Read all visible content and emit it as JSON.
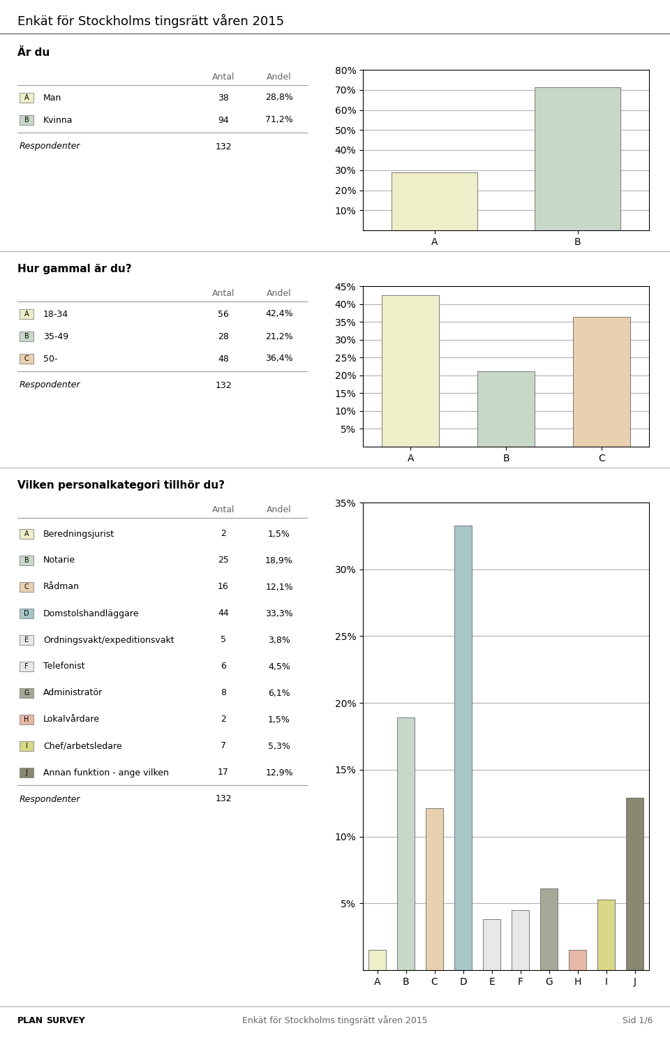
{
  "title": "Enkät för Stockholms tingsrätt våren 2015",
  "annotations": [
    "PLAN",
    "SURVEY",
    "Enkät för Stockholms tingsrätt våren 2015",
    "Sid 1/6"
  ],
  "chart_data": [
    {
      "type": "bar",
      "title": "Är du",
      "categories": [
        "A",
        "B"
      ],
      "values": [
        0.288,
        0.712
      ],
      "colors": [
        "#eeeec8",
        "#c8d8c8"
      ],
      "ylim": [
        0,
        0.8
      ],
      "yticks": [
        {
          "value": 0.1,
          "label": "10%"
        },
        {
          "value": 0.2,
          "label": "20%"
        },
        {
          "value": 0.3,
          "label": "30%"
        },
        {
          "value": 0.4,
          "label": "40%"
        },
        {
          "value": 0.5,
          "label": "50%"
        },
        {
          "value": 0.6,
          "label": "60%"
        },
        {
          "value": 0.7,
          "label": "70%"
        },
        {
          "value": 0.8,
          "label": "80%"
        }
      ],
      "grid": true,
      "category_labels": [
        "Man",
        "Kvinna"
      ],
      "count_header": "Antal",
      "share_header": "Andel",
      "counts": [
        38,
        94
      ],
      "value_labels": [
        "28,8%",
        "71,2%"
      ],
      "total_label": "Respondenter",
      "total": 132
    },
    {
      "type": "bar",
      "title": "Hur gammal är du?",
      "categories": [
        "A",
        "B",
        "C"
      ],
      "values": [
        0.424,
        0.212,
        0.364
      ],
      "colors": [
        "#eeeec8",
        "#c8d8c8",
        "#e8d0b0"
      ],
      "ylim": [
        0,
        0.45
      ],
      "yticks": [
        {
          "value": 0.05,
          "label": "5%"
        },
        {
          "value": 0.1,
          "label": "10%"
        },
        {
          "value": 0.15,
          "label": "15%"
        },
        {
          "value": 0.2,
          "label": "20%"
        },
        {
          "value": 0.25,
          "label": "25%"
        },
        {
          "value": 0.3,
          "label": "30%"
        },
        {
          "value": 0.35,
          "label": "35%"
        },
        {
          "value": 0.4,
          "label": "40%"
        },
        {
          "value": 0.45,
          "label": "45%"
        }
      ],
      "grid": true,
      "category_labels": [
        "18-34",
        "35-49",
        "50-"
      ],
      "count_header": "Antal",
      "share_header": "Andel",
      "counts": [
        56,
        28,
        48
      ],
      "value_labels": [
        "42,4%",
        "21,2%",
        "36,4%"
      ],
      "total_label": "Respondenter",
      "total": 132
    },
    {
      "type": "bar",
      "title": "Vilken personalkategori tillhör du?",
      "categories": [
        "A",
        "B",
        "C",
        "D",
        "E",
        "F",
        "G",
        "H",
        "I",
        "J"
      ],
      "values": [
        0.015,
        0.189,
        0.121,
        0.333,
        0.038,
        0.045,
        0.061,
        0.015,
        0.053,
        0.129
      ],
      "colors": [
        "#eeeec8",
        "#c8d8c8",
        "#e8d0b0",
        "#a8c8c8",
        "#e8e8e8",
        "#e8e8e8",
        "#a8a898",
        "#e8b8a8",
        "#d8d888",
        "#888870"
      ],
      "ylim": [
        0,
        0.35
      ],
      "yticks": [
        {
          "value": 0.05,
          "label": "5%"
        },
        {
          "value": 0.1,
          "label": "10%"
        },
        {
          "value": 0.15,
          "label": "15%"
        },
        {
          "value": 0.2,
          "label": "20%"
        },
        {
          "value": 0.25,
          "label": "25%"
        },
        {
          "value": 0.3,
          "label": "30%"
        },
        {
          "value": 0.35,
          "label": "35%"
        }
      ],
      "grid": true,
      "category_labels": [
        "Beredningsjurist",
        "Notarie",
        "Rådman",
        "Domstolshandläggare",
        "Ordningsvakt/expeditionsvakt",
        "Telefonist",
        "Administratör",
        "Lokalvårdare",
        "Chef/arbetsledare",
        "Annan funktion - ange vilken"
      ],
      "count_header": "Antal",
      "share_header": "Andel",
      "counts": [
        2,
        25,
        16,
        44,
        5,
        6,
        8,
        2,
        7,
        17
      ],
      "value_labels": [
        "1,5%",
        "18,9%",
        "12,1%",
        "33,3%",
        "3,8%",
        "4,5%",
        "6,1%",
        "1,5%",
        "5,3%",
        "12,9%"
      ],
      "total_label": "Respondenter",
      "total": 132
    }
  ]
}
